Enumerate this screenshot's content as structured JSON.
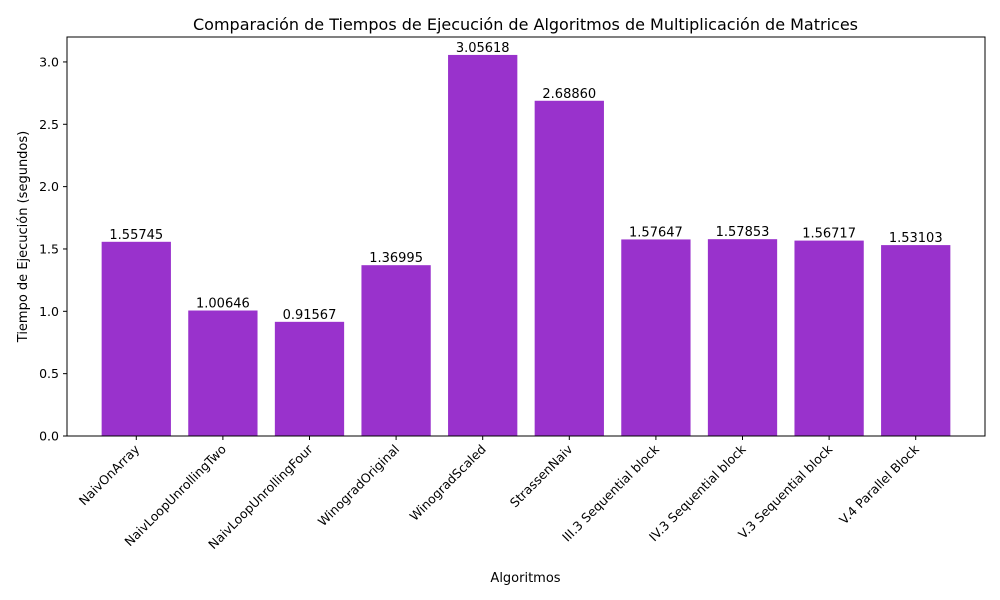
{
  "chart_data": {
    "type": "bar",
    "title": "Comparación de Tiempos de Ejecución de Algoritmos de Multiplicación de Matrices",
    "xlabel": "Algoritmos",
    "ylabel": "Tiempo de Ejecución (segundos)",
    "categories": [
      "NaivOnArray",
      "NaivLoopUnrollingTwo",
      "NaivLoopUnrollingFour",
      "WinogradOriginal",
      "WinogradScaled",
      "StrassenNaiv",
      "III.3 Sequential block",
      "IV.3 Sequential block",
      "V.3 Sequential block",
      "V.4 Parallel Block"
    ],
    "values": [
      1.55745,
      1.00646,
      0.91567,
      1.36995,
      3.05618,
      2.6886,
      1.57647,
      1.57853,
      1.56717,
      1.53103
    ],
    "value_labels": [
      "1.55745",
      "1.00646",
      "0.91567",
      "1.36995",
      "3.05618",
      "2.68860",
      "1.57647",
      "1.57853",
      "1.56717",
      "1.53103"
    ],
    "ylim": [
      0,
      3.2
    ],
    "yticks": [
      0.0,
      0.5,
      1.0,
      1.5,
      2.0,
      2.5,
      3.0
    ],
    "ytick_labels": [
      "0.0",
      "0.5",
      "1.0",
      "1.5",
      "2.0",
      "2.5",
      "3.0"
    ],
    "bar_color": "#9932CC",
    "grid": false,
    "legend": "none"
  }
}
